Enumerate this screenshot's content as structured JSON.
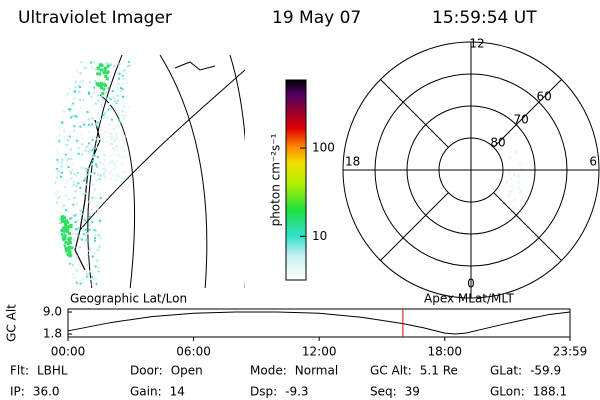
{
  "header": {
    "instrument": "Ultraviolet Imager",
    "date": "19 May 07",
    "time": "15:59:54 UT"
  },
  "colorbar": {
    "label": "photon cm⁻²s⁻¹",
    "lim": [
      3.2,
      590
    ],
    "ticks": [
      10,
      100
    ],
    "log": true
  },
  "polar": {
    "mlt_labels": {
      "top": "12",
      "left": "18",
      "right": "6",
      "bottom": "0"
    },
    "lat_lim": [
      50,
      90
    ],
    "rings": [
      60,
      70,
      80
    ]
  },
  "panel_labels": {
    "left": "Geographic Lat/Lon",
    "right": "Apex MLat/MLT"
  },
  "chart_data": {
    "type": "line",
    "ylabel": "GC Alt",
    "x": [
      0,
      2,
      4,
      6,
      8,
      10,
      12,
      14,
      16,
      17,
      18,
      18.5,
      19,
      20,
      21,
      22,
      23,
      23.983
    ],
    "series": [
      {
        "color": "#000000",
        "values": [
          2.8,
          5.5,
          7.5,
          8.6,
          9.0,
          9.0,
          8.6,
          7.3,
          5.2,
          3.8,
          2.1,
          1.8,
          2.1,
          3.7,
          5.3,
          6.8,
          8.2,
          9.0
        ]
      }
    ],
    "xlim": [
      0,
      23.983
    ],
    "xticks": [
      {
        "value": 0,
        "label": "00:00"
      },
      {
        "value": 6,
        "label": "06:00"
      },
      {
        "value": 12,
        "label": "12:00"
      },
      {
        "value": 18,
        "label": "18:00"
      },
      {
        "value": 23.983,
        "label": "23:59"
      }
    ],
    "ylim": [
      1.8,
      9.0
    ],
    "yticks": [
      1.8,
      {
        "value": 9.0,
        "label": "9.0"
      }
    ],
    "marker_x": 16.0,
    "marker_color": "#e00000"
  },
  "footer": [
    {
      "label": "Flt:",
      "value": "LBHL"
    },
    {
      "label": "IP:",
      "value": "36.0"
    },
    {
      "label": "Door:",
      "value": "Open"
    },
    {
      "label": "Gain:",
      "value": "14"
    },
    {
      "label": "Mode:",
      "value": "Normal"
    },
    {
      "label": "Dsp:",
      "value": "-9.3"
    },
    {
      "label": "GC Alt:",
      "value": "5.1 Re"
    },
    {
      "label": "Seq:",
      "value": "39"
    },
    {
      "label": "GLat:",
      "value": "-59.9"
    },
    {
      "label": "GLon:",
      "value": "188.1"
    }
  ]
}
